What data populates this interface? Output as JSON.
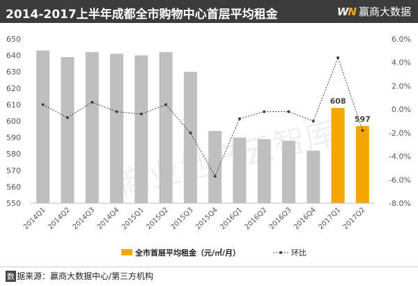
{
  "header": {
    "title": "2014-2017上半年成都全市购物中心首层平均租金",
    "brand_logo": "WN",
    "brand_name": "赢商大数据"
  },
  "chart_data": {
    "type": "bar",
    "categories": [
      "2014Q1",
      "2014Q2",
      "2014Q3",
      "2014Q4",
      "2015Q1",
      "2015Q2",
      "2015Q3",
      "2015Q4",
      "2016Q1",
      "2016Q2",
      "2016Q3",
      "2016Q4",
      "2017Q1",
      "2017Q2"
    ],
    "series": [
      {
        "name": "全市首层平均租金（元/㎡/月）",
        "kind": "bar",
        "values": [
          643,
          639,
          642,
          641,
          640,
          642,
          630,
          594,
          590,
          589,
          588,
          582,
          608,
          597
        ],
        "axis": "left"
      },
      {
        "name": "环比",
        "kind": "line",
        "values": [
          0.4,
          -0.7,
          0.6,
          -0.2,
          -0.4,
          0.4,
          -2.0,
          -5.7,
          -0.8,
          -0.2,
          -0.2,
          -1.0,
          4.4,
          -1.8
        ],
        "axis": "right"
      }
    ],
    "highlight_categories": [
      "2017Q1",
      "2017Q2"
    ],
    "data_labels": [
      {
        "category": "2017Q1",
        "text": "608"
      },
      {
        "category": "2017Q2",
        "text": "597"
      }
    ],
    "left_axis": {
      "ylim": [
        550,
        650
      ],
      "ticks": [
        "550",
        "560",
        "570",
        "580",
        "590",
        "600",
        "610",
        "620",
        "630",
        "640",
        "650"
      ]
    },
    "right_axis": {
      "ylim": [
        -8,
        6
      ],
      "ticks": [
        "6.0%",
        "4.0%",
        "2.0%",
        "0.0%",
        "-2.0%",
        "-4.0%",
        "-6.0%",
        "-8.0%"
      ]
    },
    "legend_position": "bottom",
    "grid": false
  },
  "watermark": "商业地产云智库",
  "footer": {
    "source_mark": "数",
    "source_text": "据来源：赢商大数据中心/第三方机构"
  },
  "colors": {
    "bar": "#bfbfbf",
    "bar_highlight": "#f5a600",
    "line": "#404040",
    "header_bg": "#3c3c3c"
  }
}
